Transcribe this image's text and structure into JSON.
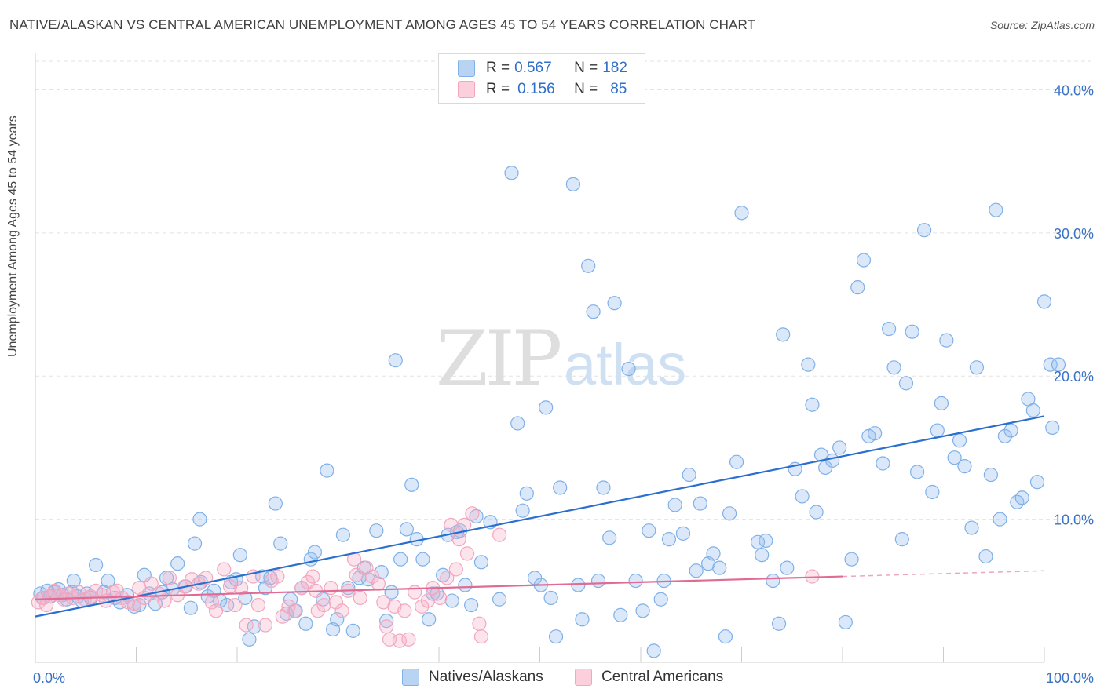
{
  "title": "NATIVE/ALASKAN VS CENTRAL AMERICAN UNEMPLOYMENT AMONG AGES 45 TO 54 YEARS CORRELATION CHART",
  "source": "Source: ZipAtlas.com",
  "watermark": {
    "zip": "ZIP",
    "atlas": "atlas"
  },
  "legend": {
    "rows": [
      {
        "r_label": "R = ",
        "r_value": "0.567",
        "n_label": "N = ",
        "n_value": "182",
        "color": "#7fb0e8"
      },
      {
        "r_label": "R = ",
        "r_value": "0.156",
        "n_label": "N = ",
        "n_value": "85",
        "color": "#f4a6bd"
      }
    ]
  },
  "chart_data": {
    "type": "scatter",
    "title": "NATIVE/ALASKAN VS CENTRAL AMERICAN UNEMPLOYMENT AMONG AGES 45 TO 54 YEARS CORRELATION CHART",
    "xlabel": "",
    "ylabel": "Unemployment Among Ages 45 to 54 years",
    "xlim": [
      0,
      100
    ],
    "ylim": [
      0,
      42
    ],
    "x_tick_labels": [
      "0.0%",
      "100.0%"
    ],
    "y_ticks": [
      10,
      20,
      30,
      40
    ],
    "y_tick_labels": [
      "10.0%",
      "20.0%",
      "30.0%",
      "40.0%"
    ],
    "grid": true,
    "legend_position": "top-center",
    "series": [
      {
        "name": "Natives/Alaskans",
        "color": "#7fb0e8",
        "line_color": "#2a6fcf",
        "trend": {
          "x": [
            0,
            100
          ],
          "y": [
            3.2,
            17.2
          ]
        },
        "points": [
          [
            0.5,
            4.8
          ],
          [
            0.8,
            4.5
          ],
          [
            1.2,
            5.0
          ],
          [
            1.5,
            4.6
          ],
          [
            1.9,
            4.9
          ],
          [
            2.3,
            5.1
          ],
          [
            2.7,
            4.7
          ],
          [
            3.1,
            4.4
          ],
          [
            3.6,
            4.9
          ],
          [
            3.8,
            5.7
          ],
          [
            4.2,
            4.6
          ],
          [
            4.6,
            4.3
          ],
          [
            5.1,
            4.8
          ],
          [
            5.5,
            4.5
          ],
          [
            6.0,
            6.8
          ],
          [
            6.8,
            4.9
          ],
          [
            7.2,
            5.7
          ],
          [
            7.9,
            4.5
          ],
          [
            8.4,
            4.2
          ],
          [
            9.1,
            4.7
          ],
          [
            9.8,
            3.9
          ],
          [
            10.3,
            4.0
          ],
          [
            10.8,
            6.1
          ],
          [
            11.3,
            4.8
          ],
          [
            11.9,
            4.1
          ],
          [
            12.6,
            4.9
          ],
          [
            13.0,
            5.9
          ],
          [
            13.6,
            5.1
          ],
          [
            14.1,
            6.9
          ],
          [
            14.9,
            5.3
          ],
          [
            15.4,
            3.8
          ],
          [
            15.8,
            8.3
          ],
          [
            16.4,
            5.6
          ],
          [
            16.3,
            10.0
          ],
          [
            17.1,
            4.6
          ],
          [
            17.7,
            5.0
          ],
          [
            18.3,
            4.3
          ],
          [
            19.0,
            4.0
          ],
          [
            19.4,
            5.6
          ],
          [
            19.9,
            5.8
          ],
          [
            20.3,
            7.5
          ],
          [
            20.8,
            4.5
          ],
          [
            21.2,
            1.6
          ],
          [
            21.7,
            2.5
          ],
          [
            22.5,
            6.0
          ],
          [
            22.8,
            5.2
          ],
          [
            23.3,
            5.9
          ],
          [
            23.8,
            11.1
          ],
          [
            24.3,
            8.3
          ],
          [
            24.9,
            3.4
          ],
          [
            25.3,
            4.4
          ],
          [
            25.8,
            3.6
          ],
          [
            26.4,
            5.2
          ],
          [
            26.8,
            2.7
          ],
          [
            27.3,
            7.2
          ],
          [
            27.7,
            7.7
          ],
          [
            28.5,
            4.4
          ],
          [
            28.9,
            13.4
          ],
          [
            29.5,
            2.3
          ],
          [
            29.9,
            3.0
          ],
          [
            30.5,
            8.9
          ],
          [
            31.0,
            5.2
          ],
          [
            31.5,
            2.2
          ],
          [
            32.1,
            5.9
          ],
          [
            32.6,
            6.6
          ],
          [
            33.0,
            5.8
          ],
          [
            33.8,
            9.2
          ],
          [
            34.3,
            6.3
          ],
          [
            34.8,
            2.9
          ],
          [
            35.3,
            4.9
          ],
          [
            35.7,
            21.1
          ],
          [
            36.2,
            7.2
          ],
          [
            36.8,
            9.3
          ],
          [
            37.3,
            12.4
          ],
          [
            37.8,
            8.6
          ],
          [
            38.4,
            7.2
          ],
          [
            39.0,
            3.0
          ],
          [
            39.4,
            4.8
          ],
          [
            39.8,
            4.8
          ],
          [
            40.4,
            6.1
          ],
          [
            40.9,
            8.9
          ],
          [
            41.3,
            4.3
          ],
          [
            41.8,
            9.1
          ],
          [
            42.1,
            9.2
          ],
          [
            42.6,
            5.4
          ],
          [
            43.2,
            4.0
          ],
          [
            43.7,
            10.2
          ],
          [
            44.2,
            7.0
          ],
          [
            45.1,
            9.8
          ],
          [
            46.0,
            4.4
          ],
          [
            47.2,
            34.2
          ],
          [
            47.8,
            16.7
          ],
          [
            48.3,
            10.6
          ],
          [
            48.7,
            11.8
          ],
          [
            49.5,
            5.9
          ],
          [
            50.1,
            5.4
          ],
          [
            50.6,
            17.8
          ],
          [
            51.1,
            4.5
          ],
          [
            51.6,
            1.8
          ],
          [
            52.0,
            12.2
          ],
          [
            53.3,
            33.4
          ],
          [
            53.8,
            5.4
          ],
          [
            54.2,
            3.0
          ],
          [
            54.8,
            27.7
          ],
          [
            55.3,
            24.5
          ],
          [
            55.8,
            5.7
          ],
          [
            56.3,
            12.2
          ],
          [
            56.9,
            8.7
          ],
          [
            57.4,
            25.1
          ],
          [
            58.0,
            3.3
          ],
          [
            58.8,
            20.5
          ],
          [
            59.5,
            5.7
          ],
          [
            60.2,
            3.6
          ],
          [
            60.8,
            9.2
          ],
          [
            61.3,
            0.8
          ],
          [
            62.0,
            4.4
          ],
          [
            62.3,
            5.7
          ],
          [
            62.8,
            8.6
          ],
          [
            63.4,
            11.0
          ],
          [
            64.2,
            9.0
          ],
          [
            64.8,
            13.1
          ],
          [
            65.5,
            6.4
          ],
          [
            65.9,
            11.1
          ],
          [
            66.7,
            6.9
          ],
          [
            67.2,
            7.6
          ],
          [
            67.8,
            6.6
          ],
          [
            68.4,
            1.8
          ],
          [
            68.8,
            10.4
          ],
          [
            69.5,
            14.0
          ],
          [
            70.0,
            31.4
          ],
          [
            71.6,
            8.4
          ],
          [
            72.0,
            7.5
          ],
          [
            72.4,
            8.5
          ],
          [
            73.1,
            5.7
          ],
          [
            73.7,
            2.7
          ],
          [
            74.1,
            22.9
          ],
          [
            74.5,
            6.6
          ],
          [
            75.3,
            13.5
          ],
          [
            76.0,
            11.6
          ],
          [
            76.6,
            20.8
          ],
          [
            77.0,
            18.0
          ],
          [
            77.4,
            10.5
          ],
          [
            77.9,
            14.5
          ],
          [
            78.3,
            13.6
          ],
          [
            79.0,
            14.1
          ],
          [
            79.7,
            15.0
          ],
          [
            80.3,
            2.8
          ],
          [
            80.9,
            7.2
          ],
          [
            81.5,
            26.2
          ],
          [
            82.1,
            28.1
          ],
          [
            82.6,
            15.8
          ],
          [
            83.2,
            16.0
          ],
          [
            84.0,
            13.9
          ],
          [
            84.6,
            23.3
          ],
          [
            85.1,
            20.6
          ],
          [
            85.9,
            8.6
          ],
          [
            86.3,
            19.5
          ],
          [
            86.9,
            23.1
          ],
          [
            87.4,
            13.3
          ],
          [
            88.1,
            30.2
          ],
          [
            88.9,
            11.9
          ],
          [
            89.4,
            16.2
          ],
          [
            89.8,
            18.1
          ],
          [
            90.3,
            22.5
          ],
          [
            91.1,
            14.3
          ],
          [
            91.6,
            15.5
          ],
          [
            92.1,
            13.7
          ],
          [
            92.8,
            9.4
          ],
          [
            93.3,
            20.6
          ],
          [
            94.2,
            7.4
          ],
          [
            94.7,
            13.1
          ],
          [
            95.2,
            31.6
          ],
          [
            95.6,
            10.0
          ],
          [
            96.1,
            15.8
          ],
          [
            96.7,
            16.2
          ],
          [
            97.3,
            11.2
          ],
          [
            97.8,
            11.5
          ],
          [
            98.4,
            18.4
          ],
          [
            98.9,
            17.6
          ],
          [
            99.3,
            12.6
          ],
          [
            100.0,
            25.2
          ],
          [
            100.6,
            20.8
          ],
          [
            101.4,
            20.8
          ],
          [
            100.8,
            16.4
          ]
        ]
      },
      {
        "name": "Central Americans",
        "color": "#f4a6bd",
        "line_color": "#e06c96",
        "trend": {
          "x": [
            0,
            80
          ],
          "y": [
            4.4,
            6.0
          ]
        },
        "trend_dashed": {
          "x": [
            80,
            100
          ],
          "y": [
            6.0,
            6.4
          ]
        },
        "points": [
          [
            0.3,
            4.2
          ],
          [
            0.7,
            4.5
          ],
          [
            1.1,
            4.0
          ],
          [
            1.4,
            4.6
          ],
          [
            1.9,
            5.0
          ],
          [
            2.4,
            4.7
          ],
          [
            2.8,
            4.4
          ],
          [
            3.3,
            4.8
          ],
          [
            3.7,
            4.5
          ],
          [
            4.3,
            4.9
          ],
          [
            4.9,
            4.4
          ],
          [
            5.5,
            4.6
          ],
          [
            6.0,
            5.0
          ],
          [
            6.6,
            4.7
          ],
          [
            7.0,
            4.3
          ],
          [
            7.7,
            4.9
          ],
          [
            8.1,
            5.0
          ],
          [
            8.6,
            4.5
          ],
          [
            9.2,
            4.2
          ],
          [
            9.8,
            4.1
          ],
          [
            10.3,
            5.2
          ],
          [
            10.8,
            4.5
          ],
          [
            11.5,
            5.5
          ],
          [
            12.2,
            4.8
          ],
          [
            12.8,
            4.3
          ],
          [
            13.3,
            5.9
          ],
          [
            14.1,
            4.7
          ],
          [
            14.8,
            5.3
          ],
          [
            15.5,
            5.8
          ],
          [
            16.2,
            5.5
          ],
          [
            16.9,
            5.9
          ],
          [
            17.5,
            4.2
          ],
          [
            17.9,
            3.6
          ],
          [
            18.7,
            6.5
          ],
          [
            19.3,
            5.3
          ],
          [
            19.8,
            4.0
          ],
          [
            20.4,
            5.2
          ],
          [
            20.9,
            2.6
          ],
          [
            21.6,
            6.0
          ],
          [
            22.1,
            4.0
          ],
          [
            22.8,
            2.6
          ],
          [
            23.4,
            5.7
          ],
          [
            24.0,
            6.0
          ],
          [
            24.5,
            3.2
          ],
          [
            25.1,
            3.9
          ],
          [
            25.7,
            3.6
          ],
          [
            26.4,
            5.2
          ],
          [
            27.0,
            5.6
          ],
          [
            27.5,
            6.0
          ],
          [
            28.0,
            3.6
          ],
          [
            28.6,
            4.0
          ],
          [
            29.3,
            5.2
          ],
          [
            29.8,
            4.2
          ],
          [
            30.4,
            3.6
          ],
          [
            31.0,
            5.0
          ],
          [
            31.6,
            7.2
          ],
          [
            32.2,
            4.5
          ],
          [
            32.8,
            6.6
          ],
          [
            33.4,
            6.0
          ],
          [
            34.0,
            5.5
          ],
          [
            34.5,
            4.2
          ],
          [
            34.8,
            2.5
          ],
          [
            35.1,
            1.6
          ],
          [
            35.6,
            3.9
          ],
          [
            36.1,
            1.5
          ],
          [
            36.6,
            3.6
          ],
          [
            37.0,
            1.6
          ],
          [
            37.6,
            4.9
          ],
          [
            38.3,
            3.9
          ],
          [
            38.9,
            4.3
          ],
          [
            39.4,
            5.2
          ],
          [
            40.1,
            4.5
          ],
          [
            40.8,
            5.9
          ],
          [
            41.2,
            9.6
          ],
          [
            41.7,
            6.5
          ],
          [
            42.0,
            8.6
          ],
          [
            42.5,
            9.6
          ],
          [
            42.8,
            7.6
          ],
          [
            43.3,
            10.4
          ],
          [
            44.0,
            2.7
          ],
          [
            44.2,
            1.8
          ],
          [
            31.8,
            6.1
          ],
          [
            27.8,
            5.0
          ],
          [
            46.0,
            8.9
          ],
          [
            77.0,
            6.0
          ]
        ]
      }
    ]
  },
  "bottom_legend": [
    {
      "label": "Natives/Alaskans",
      "color": "#7fb0e8"
    },
    {
      "label": "Central Americans",
      "color": "#f4a6bd"
    }
  ]
}
